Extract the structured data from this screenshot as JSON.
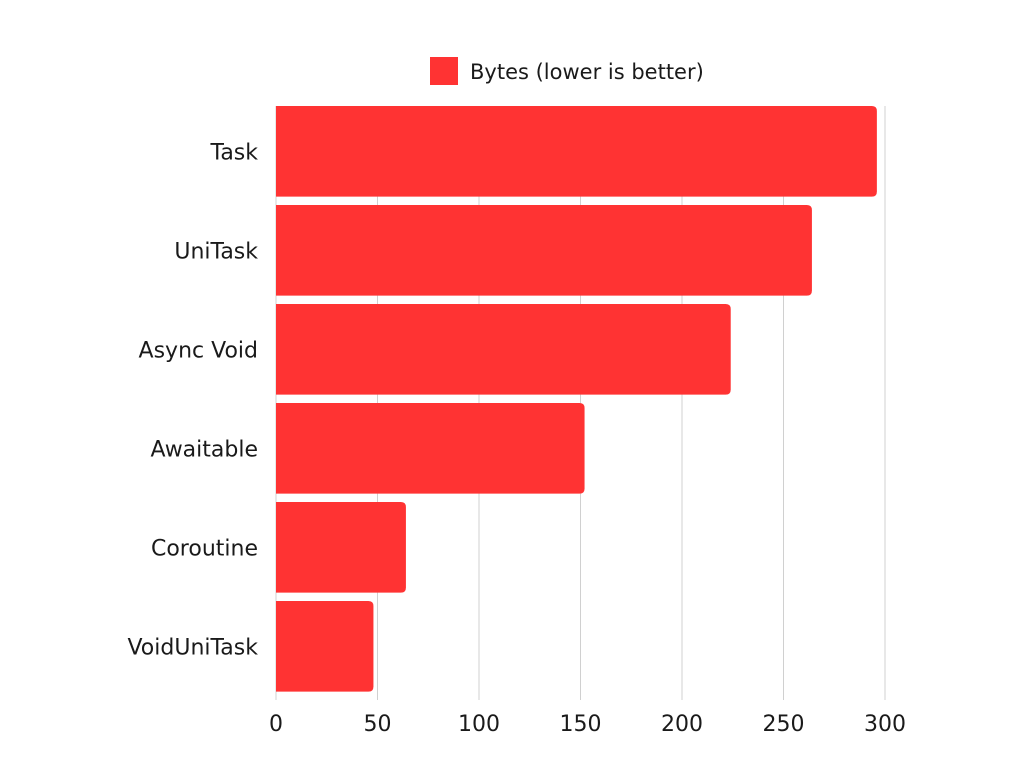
{
  "chart_data": {
    "type": "bar",
    "orientation": "horizontal",
    "categories": [
      "Task",
      "UniTask",
      "Async Void",
      "Awaitable",
      "Coroutine",
      "VoidUniTask"
    ],
    "series": [
      {
        "name": "Bytes (lower is better)",
        "values": [
          296,
          264,
          224,
          152,
          64,
          48
        ],
        "color": "#ff3333"
      }
    ],
    "xlim": [
      0,
      300
    ],
    "xticks": [
      0,
      50,
      100,
      150,
      200,
      250,
      300
    ],
    "grid": true,
    "legend_position": "top"
  }
}
